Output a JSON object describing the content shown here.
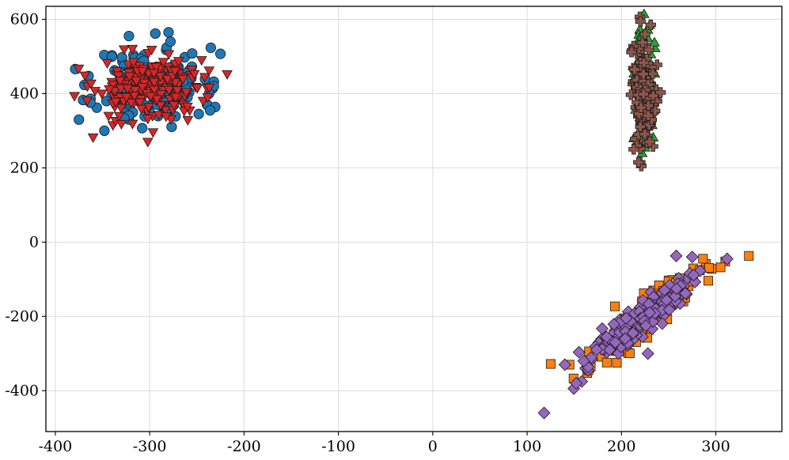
{
  "chart_data": {
    "type": "scatter",
    "title": "",
    "xlabel": "",
    "ylabel": "",
    "xlim": [
      -410,
      370
    ],
    "ylim": [
      -510,
      635
    ],
    "x_ticks": [
      -400,
      -300,
      -200,
      -100,
      0,
      100,
      200,
      300
    ],
    "y_ticks": [
      -400,
      -200,
      0,
      200,
      400,
      600
    ],
    "x_tick_labels": [
      "-400",
      "-300",
      "-200",
      "-100",
      "0",
      "100",
      "200",
      "300"
    ],
    "y_tick_labels": [
      "-400",
      "-200",
      "0",
      "200",
      "400",
      "600"
    ],
    "grid": true,
    "legend": "none",
    "series": [
      {
        "marker": "circle",
        "color": "#1f77b4",
        "cluster": {
          "center": [
            -300,
            420
          ],
          "sd": [
            28,
            52
          ],
          "rho": 0,
          "n": 150,
          "seed": 11
        },
        "extra_points": [
          [
            -375,
            330
          ],
          [
            -225,
            507
          ],
          [
            -232,
            432
          ],
          [
            -280,
            565
          ],
          [
            -322,
            555
          ],
          [
            -236,
            355
          ],
          [
            -232,
            420
          ],
          [
            -248,
            345
          ],
          [
            -348,
            300
          ],
          [
            -308,
            307
          ],
          [
            -278,
            540
          ],
          [
            -237,
            400
          ],
          [
            -255,
            508
          ]
        ]
      },
      {
        "marker": "square",
        "color": "#ff7f0e",
        "cluster": {
          "center": [
            225,
            -205
          ],
          "sd": [
            28,
            62
          ],
          "rho": 0.93,
          "n": 170,
          "seed": 23
        },
        "extra_points": [
          [
            335,
            -37
          ],
          [
            125,
            -328
          ],
          [
            165,
            -345
          ],
          [
            310,
            -52
          ],
          [
            292,
            -104
          ],
          [
            193,
            -173
          ],
          [
            305,
            -68
          ],
          [
            145,
            -330
          ]
        ]
      },
      {
        "marker": "triangle-up",
        "color": "#2ca02c",
        "cluster": {
          "center": [
            225,
            420
          ],
          "sd": [
            5,
            80
          ],
          "rho": 0,
          "n": 45,
          "seed": 37
        },
        "extra_points": [
          [
            230,
            585
          ],
          [
            228,
            572
          ],
          [
            235,
            538
          ],
          [
            222,
            555
          ],
          [
            215,
            285
          ],
          [
            220,
            265
          ],
          [
            225,
            255
          ],
          [
            222,
            240
          ],
          [
            213,
            280
          ]
        ]
      },
      {
        "marker": "triangle-down",
        "color": "#d62728",
        "cluster": {
          "center": [
            -300,
            415
          ],
          "sd": [
            30,
            42
          ],
          "rho": 0,
          "n": 230,
          "seed": 53
        },
        "extra_points": [
          [
            -302,
            270
          ],
          [
            -360,
            282
          ],
          [
            -245,
            490
          ],
          [
            -237,
            462
          ],
          [
            -345,
            482
          ],
          [
            -260,
            365
          ],
          [
            -330,
            318
          ]
        ]
      },
      {
        "marker": "diamond",
        "color": "#9467bd",
        "cluster": {
          "center": [
            222,
            -205
          ],
          "sd": [
            30,
            62
          ],
          "rho": 0.93,
          "n": 220,
          "seed": 71
        },
        "extra_points": [
          [
            118,
            -460
          ],
          [
            152,
            -380
          ],
          [
            140,
            -330
          ],
          [
            312,
            -45
          ],
          [
            258,
            -37
          ],
          [
            228,
            -300
          ],
          [
            160,
            -320
          ],
          [
            275,
            -40
          ],
          [
            205,
            -205
          ]
        ]
      },
      {
        "marker": "plus",
        "color": "#8c564b",
        "cluster": {
          "center": [
            225,
            395
          ],
          "sd": [
            6,
            70
          ],
          "rho": 0,
          "n": 170,
          "seed": 89
        },
        "extra_points": [
          [
            221,
            205
          ],
          [
            218,
            215
          ],
          [
            231,
            585
          ],
          [
            225,
            560
          ],
          [
            213,
            250
          ],
          [
            230,
            270
          ]
        ]
      }
    ]
  }
}
